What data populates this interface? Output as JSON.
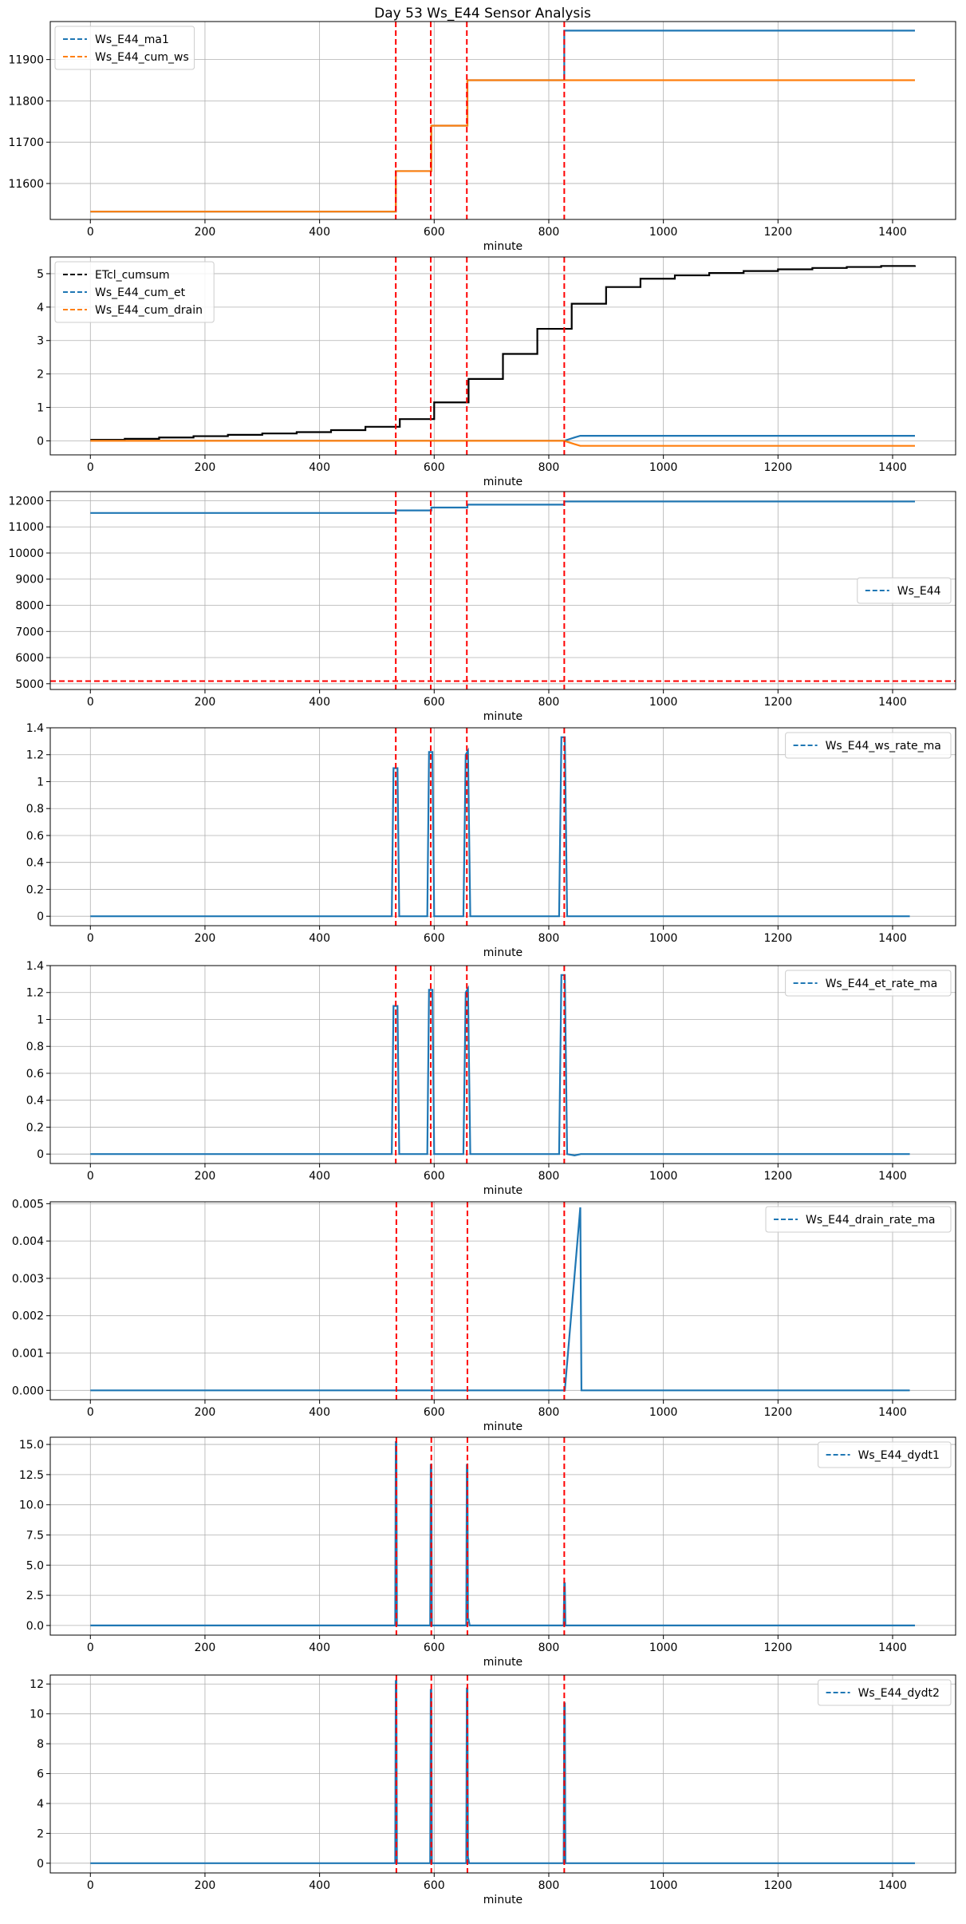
{
  "figure": {
    "title": "Day 53 Ws_E44 Sensor Analysis"
  },
  "colors": {
    "blue": "#1f77b4",
    "orange": "#ff7f0e",
    "black": "#000000",
    "red": "#ff0000",
    "grid": "#b0b0b0"
  },
  "chart_data": [
    {
      "type": "line",
      "xlabel": "minute",
      "xlim": [
        -70,
        1510
      ],
      "ylim": [
        11513,
        11992
      ],
      "xticks": [
        0,
        200,
        400,
        600,
        800,
        1000,
        1200,
        1400
      ],
      "yticks": [
        11600,
        11700,
        11800,
        11900
      ],
      "legend_loc": "upper-left",
      "vlines": [
        533,
        594,
        657,
        827
      ],
      "hlines": [],
      "series": [
        {
          "name": "Ws_E44_ma1",
          "color": "blue",
          "step": true,
          "x": [
            0,
            532,
            533,
            594,
            595,
            657,
            658,
            825,
            826,
            827,
            828,
            1439
          ],
          "y": [
            11532,
            11532,
            11630,
            11630,
            11740,
            11740,
            11850,
            11850,
            11850,
            11970,
            11970,
            11970
          ]
        },
        {
          "name": "Ws_E44_cum_ws",
          "color": "orange",
          "step": true,
          "x": [
            0,
            532,
            533,
            594,
            595,
            657,
            658,
            1439
          ],
          "y": [
            11532,
            11532,
            11630,
            11630,
            11740,
            11740,
            11850,
            11850
          ]
        }
      ]
    },
    {
      "type": "line",
      "xlabel": "minute",
      "xlim": [
        -70,
        1510
      ],
      "ylim": [
        -0.42,
        5.5
      ],
      "xticks": [
        0,
        200,
        400,
        600,
        800,
        1000,
        1200,
        1400
      ],
      "yticks": [
        0,
        1,
        2,
        3,
        4,
        5
      ],
      "legend_loc": "upper-left",
      "vlines": [
        533,
        594,
        657,
        827
      ],
      "hlines": [],
      "series": [
        {
          "name": "ETcl_cumsum",
          "color": "black",
          "step": true,
          "x": [
            0,
            60,
            120,
            180,
            240,
            300,
            360,
            420,
            480,
            540,
            600,
            660,
            720,
            780,
            840,
            900,
            960,
            1020,
            1080,
            1140,
            1200,
            1260,
            1320,
            1380,
            1439
          ],
          "y": [
            0.03,
            0.06,
            0.1,
            0.14,
            0.18,
            0.22,
            0.26,
            0.32,
            0.42,
            0.65,
            1.15,
            1.85,
            2.6,
            3.35,
            4.1,
            4.6,
            4.85,
            4.95,
            5.02,
            5.08,
            5.13,
            5.17,
            5.2,
            5.23,
            5.25
          ]
        },
        {
          "name": "Ws_E44_cum_et",
          "color": "blue",
          "step": false,
          "x": [
            0,
            827,
            845,
            855,
            1439
          ],
          "y": [
            0,
            0,
            0.1,
            0.15,
            0.15
          ]
        },
        {
          "name": "Ws_E44_cum_drain",
          "color": "orange",
          "step": false,
          "x": [
            0,
            827,
            845,
            855,
            1439
          ],
          "y": [
            0,
            0,
            -0.1,
            -0.15,
            -0.15
          ]
        }
      ]
    },
    {
      "type": "line",
      "xlabel": "minute",
      "xlim": [
        -70,
        1510
      ],
      "ylim": [
        4780,
        12350
      ],
      "xticks": [
        0,
        200,
        400,
        600,
        800,
        1000,
        1200,
        1400
      ],
      "yticks": [
        5000,
        6000,
        7000,
        8000,
        9000,
        10000,
        11000,
        12000
      ],
      "legend_loc": "center-right",
      "vlines": [
        533,
        594,
        657,
        827
      ],
      "hlines": [
        5100
      ],
      "series": [
        {
          "name": "Ws_E44",
          "color": "blue",
          "step": true,
          "x": [
            0,
            532,
            533,
            594,
            595,
            657,
            658,
            826,
            827,
            1439
          ],
          "y": [
            11532,
            11532,
            11630,
            11630,
            11740,
            11740,
            11850,
            11850,
            11970,
            11970
          ]
        }
      ]
    },
    {
      "type": "line",
      "xlabel": "minute",
      "xlim": [
        -70,
        1510
      ],
      "ylim": [
        -0.07,
        1.4
      ],
      "xticks": [
        0,
        200,
        400,
        600,
        800,
        1000,
        1200,
        1400
      ],
      "yticks": [
        0,
        0.2,
        0.4,
        0.6,
        0.8,
        1.0,
        1.2,
        1.4
      ],
      "legend_loc": "upper-right",
      "vlines": [
        533,
        594,
        657,
        827
      ],
      "hlines": [],
      "series": [
        {
          "name": "Ws_E44_ws_rate_ma",
          "color": "blue",
          "step": false,
          "x": [
            0,
            526,
            529,
            536,
            539,
            588,
            591,
            597,
            600,
            651,
            655,
            659,
            663,
            818,
            822,
            828,
            832,
            1430
          ],
          "y": [
            0,
            0,
            1.1,
            1.1,
            0,
            0,
            1.22,
            1.22,
            0,
            0,
            1.2,
            1.23,
            0,
            0,
            1.33,
            1.33,
            0,
            0
          ]
        }
      ]
    },
    {
      "type": "line",
      "xlabel": "minute",
      "xlim": [
        -70,
        1510
      ],
      "ylim": [
        -0.07,
        1.4
      ],
      "xticks": [
        0,
        200,
        400,
        600,
        800,
        1000,
        1200,
        1400
      ],
      "yticks": [
        0,
        0.2,
        0.4,
        0.6,
        0.8,
        1.0,
        1.2,
        1.4
      ],
      "legend_loc": "upper-right",
      "vlines": [
        533,
        594,
        657,
        827
      ],
      "hlines": [],
      "series": [
        {
          "name": "Ws_E44_et_rate_ma",
          "color": "blue",
          "step": false,
          "x": [
            0,
            526,
            529,
            536,
            539,
            588,
            591,
            597,
            600,
            651,
            655,
            659,
            663,
            818,
            822,
            828,
            832,
            845,
            856,
            1430
          ],
          "y": [
            0,
            0,
            1.1,
            1.1,
            0,
            0,
            1.22,
            1.22,
            0,
            0,
            1.2,
            1.23,
            0,
            0,
            1.33,
            1.33,
            0,
            -0.01,
            0,
            0
          ]
        }
      ]
    },
    {
      "type": "line",
      "xlabel": "minute",
      "xlim": [
        -70,
        1510
      ],
      "ylim": [
        -0.00025,
        0.00505
      ],
      "xticks": [
        0,
        200,
        400,
        600,
        800,
        1000,
        1200,
        1400
      ],
      "yticks": [
        0,
        0.001,
        0.002,
        0.003,
        0.004,
        0.005
      ],
      "ytick_labels": [
        "0.000",
        "0.001",
        "0.002",
        "0.003",
        "0.004",
        "0.005"
      ],
      "legend_loc": "upper-right",
      "vlines": [
        534,
        596,
        658,
        827
      ],
      "hlines": [],
      "series": [
        {
          "name": "Ws_E44_drain_rate_ma",
          "color": "blue",
          "step": false,
          "x": [
            0,
            826,
            828,
            855,
            857,
            1430
          ],
          "y": [
            0,
            0,
            0,
            0.0049,
            0,
            0
          ]
        }
      ]
    },
    {
      "type": "line",
      "xlabel": "minute",
      "xlim": [
        -70,
        1510
      ],
      "ylim": [
        -0.8,
        15.6
      ],
      "xticks": [
        0,
        200,
        400,
        600,
        800,
        1000,
        1200,
        1400
      ],
      "yticks": [
        0,
        2.5,
        5.0,
        7.5,
        10.0,
        12.5,
        15.0
      ],
      "ytick_labels": [
        "0.0",
        "2.5",
        "5.0",
        "7.5",
        "10.0",
        "12.5",
        "15.0"
      ],
      "legend_loc": "upper-right",
      "vlines": [
        534,
        595,
        658,
        827
      ],
      "hlines": [],
      "series": [
        {
          "name": "Ws_E44_dydt1",
          "color": "blue",
          "step": false,
          "x": [
            0,
            532,
            533,
            534,
            535,
            593,
            594,
            595,
            596,
            656,
            657,
            658,
            659,
            660,
            662,
            826,
            827,
            828,
            829,
            1439
          ],
          "y": [
            0,
            0,
            15.2,
            15.2,
            0,
            0,
            13.3,
            13.3,
            0,
            0,
            13.3,
            13.3,
            0.5,
            0.5,
            0,
            0,
            3.5,
            3.5,
            0,
            0
          ]
        }
      ]
    },
    {
      "type": "line",
      "xlabel": "minute",
      "xlim": [
        -70,
        1510
      ],
      "ylim": [
        -0.65,
        12.6
      ],
      "xticks": [
        0,
        200,
        400,
        600,
        800,
        1000,
        1200,
        1400
      ],
      "yticks": [
        0,
        2,
        4,
        6,
        8,
        10,
        12
      ],
      "legend_loc": "upper-right",
      "vlines": [
        534,
        595,
        658,
        827
      ],
      "hlines": [],
      "series": [
        {
          "name": "Ws_E44_dydt2",
          "color": "blue",
          "step": false,
          "x": [
            0,
            532,
            533,
            534,
            535,
            593,
            594,
            595,
            596,
            656,
            657,
            658,
            659,
            661,
            826,
            827,
            828,
            829,
            1439
          ],
          "y": [
            0,
            0,
            12.2,
            12.2,
            0,
            0,
            11.6,
            11.6,
            0,
            0,
            11.7,
            11.7,
            0.4,
            0,
            0,
            10.7,
            10.7,
            0,
            0
          ]
        }
      ]
    }
  ]
}
